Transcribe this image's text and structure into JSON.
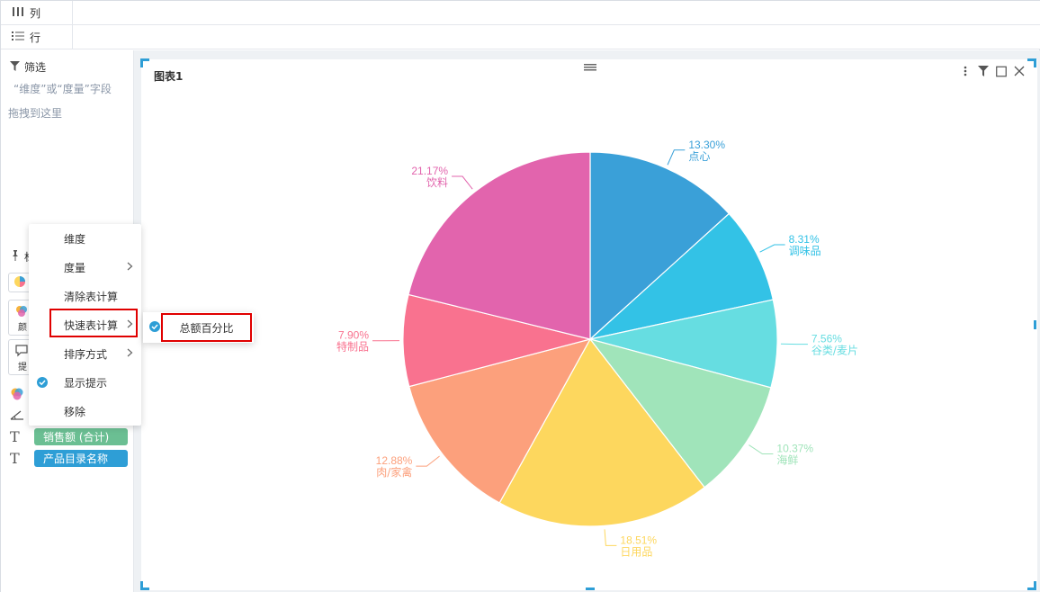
{
  "shelves": {
    "columns_label": "列",
    "rows_label": "行"
  },
  "filter": {
    "title": "筛选",
    "hint": "“维度”或“度量”字段",
    "drop": "拖拽到这里"
  },
  "marks": {
    "title_partial": "标",
    "color_label_partial": "颜",
    "tooltip_label_partial": "提",
    "pill_measure": "销售额 (合计)",
    "pill_dimension": "产品目录名称"
  },
  "context_menu": {
    "items": [
      "维度",
      "度量",
      "清除表计算",
      "快速表计算",
      "排序方式",
      "显示提示",
      "移除"
    ],
    "submenu_item": "总额百分比"
  },
  "card": {
    "title": "图表1"
  },
  "icons": {
    "columns": "columns-icon",
    "rows": "rows-icon",
    "filter": "filter-icon",
    "pin": "pin-icon",
    "more": "more-vertical-icon",
    "card_filter": "filter-icon",
    "maximize": "maximize-icon",
    "close": "close-icon"
  },
  "chart_data": {
    "type": "pie",
    "title": "图表1",
    "slices": [
      {
        "label": "点心",
        "value": 13.3,
        "percent_label": "13.30%",
        "color": "#3aa0d8"
      },
      {
        "label": "调味品",
        "value": 8.31,
        "percent_label": "8.31%",
        "color": "#33c2e6"
      },
      {
        "label": "谷类/麦片",
        "value": 7.56,
        "percent_label": "7.56%",
        "color": "#66dde1"
      },
      {
        "label": "海鲜",
        "value": 10.37,
        "percent_label": "10.37%",
        "color": "#a0e4ba"
      },
      {
        "label": "日用品",
        "value": 18.51,
        "percent_label": "18.51%",
        "color": "#fdd75e"
      },
      {
        "label": "肉/家禽",
        "value": 12.88,
        "percent_label": "12.88%",
        "color": "#fca07c"
      },
      {
        "label": "特制品",
        "value": 7.9,
        "percent_label": "7.90%",
        "color": "#f9728f"
      },
      {
        "label": "饮料",
        "value": 21.17,
        "percent_label": "21.17%",
        "color": "#e264ad"
      }
    ]
  }
}
